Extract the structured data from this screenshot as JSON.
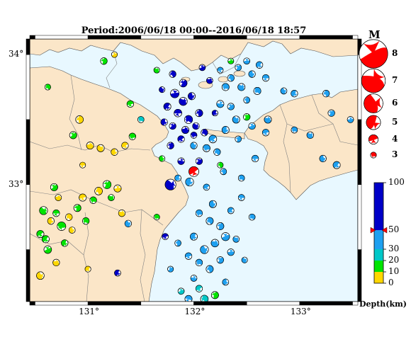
{
  "title": "Period:2006/06/18 00:00--2016/06/18 18:57",
  "map": {
    "lon_range": [
      130.45,
      133.55
    ],
    "lat_range": [
      32.1,
      34.12
    ],
    "x_ticks": [
      {
        "value": 131,
        "label": "131°"
      },
      {
        "value": 132,
        "label": "132°"
      },
      {
        "value": 133,
        "label": "133°"
      }
    ],
    "y_ticks": [
      {
        "value": 34,
        "label": "34°"
      },
      {
        "value": 33,
        "label": "33°"
      }
    ],
    "colors": {
      "sea": "#e8f8ff",
      "land": "#fbe6c8",
      "border": "#808080",
      "mainshock": "#ff0000",
      "frame": "#000000"
    },
    "mainshock": {
      "lon": 132.0,
      "lat": 33.1,
      "depth_km": 50,
      "mag": 6
    }
  },
  "legend": {
    "magnitude_title": "M",
    "magnitudes": [
      {
        "label": "8",
        "value": 8
      },
      {
        "label": "7",
        "value": 7
      },
      {
        "label": "6",
        "value": 6
      },
      {
        "label": "5",
        "value": 5
      },
      {
        "label": "4",
        "value": 4
      },
      {
        "label": "3",
        "value": 3
      }
    ],
    "depth_unit": "Depth(km)",
    "depth_ticks": [
      {
        "label": "100",
        "value": 100
      },
      {
        "label": "50",
        "value": 50
      },
      {
        "label": "30",
        "value": 30
      },
      {
        "label": "20",
        "value": 20
      },
      {
        "label": "10",
        "value": 10
      },
      {
        "label": "0",
        "value": 0
      }
    ],
    "depth_colors": [
      {
        "from": 0,
        "to": 10,
        "color": "#ffd700"
      },
      {
        "from": 10,
        "to": 20,
        "color": "#00e400"
      },
      {
        "from": 20,
        "to": 30,
        "color": "#00c8c8"
      },
      {
        "from": 30,
        "to": 50,
        "color": "#1ea0f0"
      },
      {
        "from": 50,
        "to": 100,
        "color": "#0000c8"
      }
    ],
    "marker_depth": 50
  },
  "events": [
    {
      "lon": 130.68,
      "lat": 32.98,
      "d": 12,
      "m": 3.6
    },
    {
      "lon": 130.72,
      "lat": 32.9,
      "d": 8,
      "m": 3.4
    },
    {
      "lon": 130.58,
      "lat": 32.8,
      "d": 14,
      "m": 3.8
    },
    {
      "lon": 130.65,
      "lat": 32.72,
      "d": 6,
      "m": 3.5
    },
    {
      "lon": 130.55,
      "lat": 32.62,
      "d": 13,
      "m": 3.6
    },
    {
      "lon": 130.75,
      "lat": 32.68,
      "d": 15,
      "m": 3.9
    },
    {
      "lon": 130.82,
      "lat": 32.75,
      "d": 9,
      "m": 3.5
    },
    {
      "lon": 130.9,
      "lat": 32.82,
      "d": 12,
      "m": 3.6
    },
    {
      "lon": 130.62,
      "lat": 32.5,
      "d": 11,
      "m": 3.7
    },
    {
      "lon": 130.7,
      "lat": 32.4,
      "d": 7,
      "m": 3.5
    },
    {
      "lon": 130.55,
      "lat": 32.3,
      "d": 8,
      "m": 3.7
    },
    {
      "lon": 130.78,
      "lat": 32.55,
      "d": 16,
      "m": 3.5
    },
    {
      "lon": 130.95,
      "lat": 32.9,
      "d": 8,
      "m": 3.6
    },
    {
      "lon": 131.05,
      "lat": 32.88,
      "d": 14,
      "m": 3.5
    },
    {
      "lon": 131.1,
      "lat": 32.95,
      "d": 7,
      "m": 3.7
    },
    {
      "lon": 131.18,
      "lat": 33.0,
      "d": 15,
      "m": 3.8
    },
    {
      "lon": 131.28,
      "lat": 32.97,
      "d": 9,
      "m": 3.6
    },
    {
      "lon": 131.22,
      "lat": 32.9,
      "d": 13,
      "m": 3.4
    },
    {
      "lon": 130.85,
      "lat": 32.65,
      "d": 6,
      "m": 3.4
    },
    {
      "lon": 130.6,
      "lat": 32.58,
      "d": 12,
      "m": 3.6
    },
    {
      "lon": 130.7,
      "lat": 32.78,
      "d": 17,
      "m": 3.5
    },
    {
      "lon": 130.98,
      "lat": 32.72,
      "d": 14,
      "m": 3.5
    },
    {
      "lon": 130.92,
      "lat": 33.5,
      "d": 7,
      "m": 3.7
    },
    {
      "lon": 130.86,
      "lat": 33.38,
      "d": 12,
      "m": 3.6
    },
    {
      "lon": 131.02,
      "lat": 33.3,
      "d": 8,
      "m": 3.6
    },
    {
      "lon": 131.12,
      "lat": 33.28,
      "d": 6,
      "m": 3.6
    },
    {
      "lon": 131.25,
      "lat": 33.25,
      "d": 7,
      "m": 3.5
    },
    {
      "lon": 131.35,
      "lat": 33.3,
      "d": 9,
      "m": 3.5
    },
    {
      "lon": 131.42,
      "lat": 33.37,
      "d": 14,
      "m": 3.5
    },
    {
      "lon": 130.62,
      "lat": 33.75,
      "d": 15,
      "m": 3.3
    },
    {
      "lon": 131.15,
      "lat": 33.95,
      "d": 13,
      "m": 3.5
    },
    {
      "lon": 131.25,
      "lat": 34.0,
      "d": 8,
      "m": 3.3
    },
    {
      "lon": 131.32,
      "lat": 32.78,
      "d": 6,
      "m": 3.5
    },
    {
      "lon": 131.38,
      "lat": 32.7,
      "d": 45,
      "m": 3.5
    },
    {
      "lon": 131.28,
      "lat": 32.32,
      "d": 60,
      "m": 3.4
    },
    {
      "lon": 131.73,
      "lat": 32.6,
      "d": 60,
      "m": 3.4
    },
    {
      "lon": 131.65,
      "lat": 32.75,
      "d": 15,
      "m": 3.3
    },
    {
      "lon": 131.8,
      "lat": 33.85,
      "d": 65,
      "m": 3.5
    },
    {
      "lon": 131.9,
      "lat": 33.78,
      "d": 70,
      "m": 3.7
    },
    {
      "lon": 131.82,
      "lat": 33.7,
      "d": 80,
      "m": 3.9
    },
    {
      "lon": 131.9,
      "lat": 33.64,
      "d": 65,
      "m": 3.8
    },
    {
      "lon": 131.98,
      "lat": 33.68,
      "d": 70,
      "m": 3.6
    },
    {
      "lon": 131.75,
      "lat": 33.6,
      "d": 75,
      "m": 3.6
    },
    {
      "lon": 131.85,
      "lat": 33.55,
      "d": 60,
      "m": 3.7
    },
    {
      "lon": 131.95,
      "lat": 33.5,
      "d": 65,
      "m": 3.8
    },
    {
      "lon": 132.05,
      "lat": 33.55,
      "d": 70,
      "m": 3.6
    },
    {
      "lon": 131.8,
      "lat": 33.45,
      "d": 55,
      "m": 3.5
    },
    {
      "lon": 131.92,
      "lat": 33.42,
      "d": 70,
      "m": 3.6
    },
    {
      "lon": 132.02,
      "lat": 33.45,
      "d": 75,
      "m": 3.5
    },
    {
      "lon": 131.72,
      "lat": 33.48,
      "d": 60,
      "m": 3.5
    },
    {
      "lon": 131.88,
      "lat": 33.35,
      "d": 55,
      "m": 3.5
    },
    {
      "lon": 132.0,
      "lat": 33.38,
      "d": 55,
      "m": 3.4
    },
    {
      "lon": 132.1,
      "lat": 33.4,
      "d": 60,
      "m": 3.5
    },
    {
      "lon": 131.78,
      "lat": 33.3,
      "d": 55,
      "m": 3.5
    },
    {
      "lon": 132.08,
      "lat": 33.9,
      "d": 60,
      "m": 3.4
    },
    {
      "lon": 132.15,
      "lat": 33.8,
      "d": 55,
      "m": 3.4
    },
    {
      "lon": 131.7,
      "lat": 33.73,
      "d": 65,
      "m": 3.3
    },
    {
      "lon": 132.2,
      "lat": 33.55,
      "d": 52,
      "m": 3.3
    },
    {
      "lon": 132.25,
      "lat": 33.88,
      "d": 45,
      "m": 3.3
    },
    {
      "lon": 132.3,
      "lat": 33.75,
      "d": 40,
      "m": 3.6
    },
    {
      "lon": 132.35,
      "lat": 33.82,
      "d": 40,
      "m": 3.5
    },
    {
      "lon": 132.42,
      "lat": 33.9,
      "d": 38,
      "m": 3.4
    },
    {
      "lon": 132.5,
      "lat": 33.95,
      "d": 35,
      "m": 3.4
    },
    {
      "lon": 132.45,
      "lat": 33.75,
      "d": 40,
      "m": 3.6
    },
    {
      "lon": 132.55,
      "lat": 33.85,
      "d": 38,
      "m": 3.5
    },
    {
      "lon": 132.62,
      "lat": 33.92,
      "d": 40,
      "m": 3.5
    },
    {
      "lon": 132.68,
      "lat": 33.82,
      "d": 42,
      "m": 3.5
    },
    {
      "lon": 132.6,
      "lat": 33.72,
      "d": 35,
      "m": 3.6
    },
    {
      "lon": 132.5,
      "lat": 33.65,
      "d": 40,
      "m": 3.4
    },
    {
      "lon": 132.35,
      "lat": 33.6,
      "d": 42,
      "m": 3.5
    },
    {
      "lon": 132.25,
      "lat": 33.62,
      "d": 45,
      "m": 3.6
    },
    {
      "lon": 132.4,
      "lat": 33.5,
      "d": 40,
      "m": 3.6
    },
    {
      "lon": 132.3,
      "lat": 33.42,
      "d": 35,
      "m": 3.6
    },
    {
      "lon": 132.18,
      "lat": 33.35,
      "d": 40,
      "m": 3.7
    },
    {
      "lon": 132.12,
      "lat": 33.28,
      "d": 45,
      "m": 3.6
    },
    {
      "lon": 132.22,
      "lat": 33.25,
      "d": 38,
      "m": 3.5
    },
    {
      "lon": 132.42,
      "lat": 33.35,
      "d": 35,
      "m": 3.4
    },
    {
      "lon": 132.55,
      "lat": 33.45,
      "d": 40,
      "m": 3.5
    },
    {
      "lon": 132.7,
      "lat": 33.5,
      "d": 40,
      "m": 3.6
    },
    {
      "lon": 132.85,
      "lat": 33.72,
      "d": 38,
      "m": 3.4
    },
    {
      "lon": 132.95,
      "lat": 33.7,
      "d": 40,
      "m": 3.5
    },
    {
      "lon": 132.68,
      "lat": 33.4,
      "d": 42,
      "m": 3.5
    },
    {
      "lon": 132.95,
      "lat": 33.42,
      "d": 40,
      "m": 3.4
    },
    {
      "lon": 133.25,
      "lat": 33.7,
      "d": 38,
      "m": 3.5
    },
    {
      "lon": 133.3,
      "lat": 33.55,
      "d": 40,
      "m": 3.5
    },
    {
      "lon": 133.48,
      "lat": 33.5,
      "d": 40,
      "m": 3.4
    },
    {
      "lon": 133.1,
      "lat": 33.38,
      "d": 40,
      "m": 3.5
    },
    {
      "lon": 133.22,
      "lat": 33.2,
      "d": 38,
      "m": 3.5
    },
    {
      "lon": 133.35,
      "lat": 33.15,
      "d": 40,
      "m": 3.6
    },
    {
      "lon": 132.58,
      "lat": 33.2,
      "d": 40,
      "m": 3.5
    },
    {
      "lon": 132.45,
      "lat": 33.05,
      "d": 40,
      "m": 3.4
    },
    {
      "lon": 132.28,
      "lat": 33.1,
      "d": 42,
      "m": 3.4
    },
    {
      "lon": 132.05,
      "lat": 33.18,
      "d": 55,
      "m": 3.5
    },
    {
      "lon": 131.88,
      "lat": 33.18,
      "d": 60,
      "m": 3.5
    },
    {
      "lon": 131.78,
      "lat": 33.0,
      "d": 60,
      "m": 4.4
    },
    {
      "lon": 131.96,
      "lat": 33.02,
      "d": 45,
      "m": 3.8
    },
    {
      "lon": 132.12,
      "lat": 32.98,
      "d": 40,
      "m": 3.4
    },
    {
      "lon": 132.05,
      "lat": 32.78,
      "d": 40,
      "m": 3.5
    },
    {
      "lon": 132.15,
      "lat": 32.72,
      "d": 38,
      "m": 3.6
    },
    {
      "lon": 132.25,
      "lat": 32.68,
      "d": 40,
      "m": 3.6
    },
    {
      "lon": 132.3,
      "lat": 32.6,
      "d": 40,
      "m": 3.8
    },
    {
      "lon": 132.2,
      "lat": 32.55,
      "d": 42,
      "m": 3.7
    },
    {
      "lon": 132.1,
      "lat": 32.5,
      "d": 40,
      "m": 3.8
    },
    {
      "lon": 132.0,
      "lat": 32.6,
      "d": 38,
      "m": 3.6
    },
    {
      "lon": 131.95,
      "lat": 32.45,
      "d": 40,
      "m": 3.5
    },
    {
      "lon": 132.05,
      "lat": 32.4,
      "d": 42,
      "m": 3.5
    },
    {
      "lon": 132.15,
      "lat": 32.35,
      "d": 38,
      "m": 3.6
    },
    {
      "lon": 132.25,
      "lat": 32.42,
      "d": 40,
      "m": 3.5
    },
    {
      "lon": 132.35,
      "lat": 32.48,
      "d": 40,
      "m": 3.5
    },
    {
      "lon": 132.4,
      "lat": 32.58,
      "d": 38,
      "m": 3.4
    },
    {
      "lon": 132.18,
      "lat": 32.85,
      "d": 40,
      "m": 3.6
    },
    {
      "lon": 132.35,
      "lat": 32.8,
      "d": 38,
      "m": 3.4
    },
    {
      "lon": 132.45,
      "lat": 32.9,
      "d": 40,
      "m": 3.4
    },
    {
      "lon": 132.55,
      "lat": 32.75,
      "d": 40,
      "m": 3.4
    },
    {
      "lon": 131.85,
      "lat": 32.55,
      "d": 40,
      "m": 3.4
    },
    {
      "lon": 131.78,
      "lat": 32.35,
      "d": 42,
      "m": 3.3
    },
    {
      "lon": 132.0,
      "lat": 32.28,
      "d": 38,
      "m": 3.4
    },
    {
      "lon": 132.48,
      "lat": 32.42,
      "d": 40,
      "m": 3.3
    },
    {
      "lon": 132.3,
      "lat": 32.25,
      "d": 38,
      "m": 3.4
    },
    {
      "lon": 132.05,
      "lat": 32.2,
      "d": 25,
      "m": 3.5
    },
    {
      "lon": 131.95,
      "lat": 32.12,
      "d": 35,
      "m": 3.6
    },
    {
      "lon": 132.1,
      "lat": 32.12,
      "d": 24,
      "m": 3.7
    },
    {
      "lon": 132.2,
      "lat": 32.15,
      "d": 15,
      "m": 3.6
    },
    {
      "lon": 131.88,
      "lat": 32.18,
      "d": 25,
      "m": 3.4
    },
    {
      "lon": 132.15,
      "lat": 32.05,
      "d": 15,
      "m": 3.5
    },
    {
      "lon": 132.0,
      "lat": 33.3,
      "d": 35,
      "m": 3.5
    },
    {
      "lon": 131.85,
      "lat": 33.05,
      "d": 35,
      "m": 3.4
    },
    {
      "lon": 131.4,
      "lat": 33.62,
      "d": 15,
      "m": 3.5
    },
    {
      "lon": 131.5,
      "lat": 33.5,
      "d": 25,
      "m": 3.4
    },
    {
      "lon": 132.25,
      "lat": 33.15,
      "d": 15,
      "m": 3.3
    },
    {
      "lon": 132.5,
      "lat": 33.52,
      "d": 15,
      "m": 3.5
    },
    {
      "lon": 132.35,
      "lat": 33.95,
      "d": 15,
      "m": 3.3
    },
    {
      "lon": 131.65,
      "lat": 33.88,
      "d": 10,
      "m": 3.3
    },
    {
      "lon": 131.7,
      "lat": 33.2,
      "d": 15,
      "m": 3.3
    },
    {
      "lon": 131.0,
      "lat": 32.35,
      "d": 5,
      "m": 3.3
    },
    {
      "lon": 130.95,
      "lat": 33.15,
      "d": 5,
      "m": 3.3
    }
  ]
}
